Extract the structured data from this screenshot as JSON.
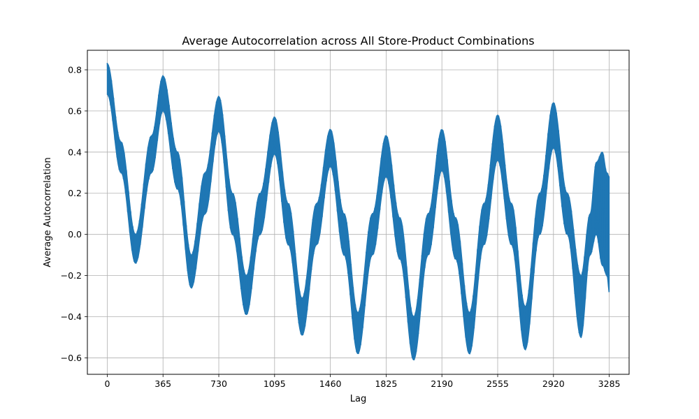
{
  "chart_data": {
    "type": "line",
    "title": "Average Autocorrelation across All Store-Product Combinations",
    "xlabel": "Lag",
    "ylabel": "Average Autocorrelation",
    "xlim": [
      -130,
      3415
    ],
    "ylim": [
      -0.68,
      0.895
    ],
    "grid": true,
    "line_color": "#1f77b4",
    "x_ticks": [
      0,
      365,
      730,
      1095,
      1460,
      1825,
      2190,
      2555,
      2920,
      3285
    ],
    "y_ticks": [
      -0.6,
      -0.4,
      -0.2,
      0.0,
      0.2,
      0.4,
      0.6,
      0.8
    ],
    "y_tick_labels": [
      "−0.6",
      "−0.4",
      "−0.2",
      "0.0",
      "0.2",
      "0.4",
      "0.6",
      "0.8"
    ],
    "series": [
      {
        "envelope_points": [
          {
            "x": 0,
            "lower": 0.68,
            "upper": 0.83
          },
          {
            "x": 90,
            "lower": 0.3,
            "upper": 0.45
          },
          {
            "x": 185,
            "lower": -0.14,
            "upper": 0.0
          },
          {
            "x": 290,
            "lower": 0.3,
            "upper": 0.48
          },
          {
            "x": 365,
            "lower": 0.6,
            "upper": 0.77
          },
          {
            "x": 460,
            "lower": 0.22,
            "upper": 0.4
          },
          {
            "x": 550,
            "lower": -0.26,
            "upper": -0.1
          },
          {
            "x": 640,
            "lower": 0.1,
            "upper": 0.3
          },
          {
            "x": 730,
            "lower": 0.5,
            "upper": 0.67
          },
          {
            "x": 820,
            "lower": 0.0,
            "upper": 0.2
          },
          {
            "x": 910,
            "lower": -0.39,
            "upper": -0.2
          },
          {
            "x": 1000,
            "lower": 0.0,
            "upper": 0.2
          },
          {
            "x": 1095,
            "lower": 0.39,
            "upper": 0.57
          },
          {
            "x": 1185,
            "lower": -0.05,
            "upper": 0.15
          },
          {
            "x": 1275,
            "lower": -0.49,
            "upper": -0.31
          },
          {
            "x": 1370,
            "lower": -0.05,
            "upper": 0.15
          },
          {
            "x": 1460,
            "lower": 0.33,
            "upper": 0.51
          },
          {
            "x": 1550,
            "lower": -0.1,
            "upper": 0.1
          },
          {
            "x": 1640,
            "lower": -0.58,
            "upper": -0.38
          },
          {
            "x": 1735,
            "lower": -0.1,
            "upper": 0.1
          },
          {
            "x": 1825,
            "lower": 0.28,
            "upper": 0.48
          },
          {
            "x": 1915,
            "lower": -0.12,
            "upper": 0.08
          },
          {
            "x": 2005,
            "lower": -0.61,
            "upper": -0.4
          },
          {
            "x": 2100,
            "lower": -0.1,
            "upper": 0.1
          },
          {
            "x": 2190,
            "lower": 0.31,
            "upper": 0.51
          },
          {
            "x": 2280,
            "lower": -0.12,
            "upper": 0.08
          },
          {
            "x": 2370,
            "lower": -0.58,
            "upper": -0.38
          },
          {
            "x": 2465,
            "lower": -0.05,
            "upper": 0.15
          },
          {
            "x": 2555,
            "lower": 0.36,
            "upper": 0.58
          },
          {
            "x": 2645,
            "lower": -0.05,
            "upper": 0.15
          },
          {
            "x": 2735,
            "lower": -0.56,
            "upper": -0.35
          },
          {
            "x": 2830,
            "lower": 0.0,
            "upper": 0.2
          },
          {
            "x": 2920,
            "lower": 0.42,
            "upper": 0.64
          },
          {
            "x": 3010,
            "lower": 0.0,
            "upper": 0.2
          },
          {
            "x": 3100,
            "lower": -0.5,
            "upper": -0.2
          },
          {
            "x": 3160,
            "lower": -0.1,
            "upper": 0.1
          },
          {
            "x": 3200,
            "lower": 0.0,
            "upper": 0.35
          },
          {
            "x": 3240,
            "lower": -0.15,
            "upper": 0.4
          },
          {
            "x": 3270,
            "lower": -0.2,
            "upper": 0.3
          },
          {
            "x": 3285,
            "lower": -0.28,
            "upper": 0.28
          }
        ]
      }
    ]
  }
}
